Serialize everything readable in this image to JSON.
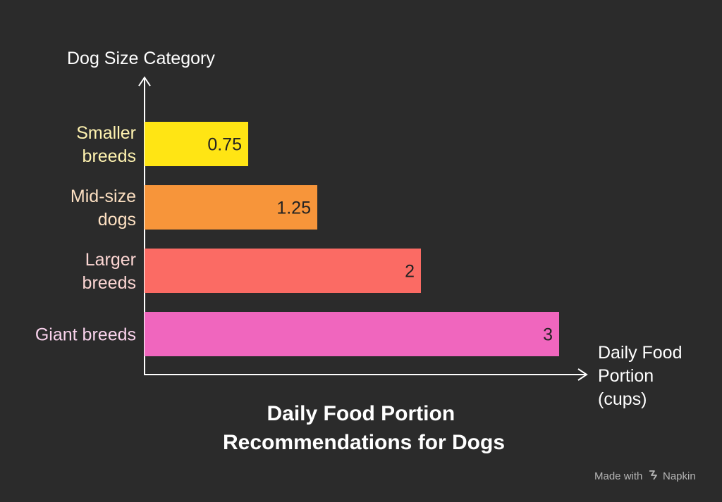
{
  "chart_data": {
    "type": "bar",
    "orientation": "horizontal",
    "title_lines": [
      "Daily Food Portion",
      "Recommendations for Dogs"
    ],
    "ylabel": "Dog Size Category",
    "xlabel_lines": [
      "Daily Food",
      "Portion",
      "(cups)"
    ],
    "categories": [
      {
        "lines": [
          "Smaller",
          "breeds"
        ],
        "value": 0.75,
        "value_label": "0.75",
        "color": "#ffe514",
        "label_color": "#fff3b0"
      },
      {
        "lines": [
          "Mid-size",
          "dogs"
        ],
        "value": 1.25,
        "value_label": "1.25",
        "color": "#f7953a",
        "label_color": "#fde0c2"
      },
      {
        "lines": [
          "Larger",
          "breeds"
        ],
        "value": 2,
        "value_label": "2",
        "color": "#fb6b64",
        "label_color": "#fcd6d3"
      },
      {
        "lines": [
          "Giant breeds"
        ],
        "value": 3,
        "value_label": "3",
        "color": "#f066be",
        "label_color": "#f9d2ec"
      }
    ],
    "xlim": [
      0,
      3
    ]
  },
  "footer": {
    "made_with": "Made with",
    "brand": "Napkin"
  },
  "colors": {
    "background": "#2b2b2b",
    "axis": "#ffffff",
    "text": "#ffffff",
    "footer": "#b5b5b5"
  }
}
